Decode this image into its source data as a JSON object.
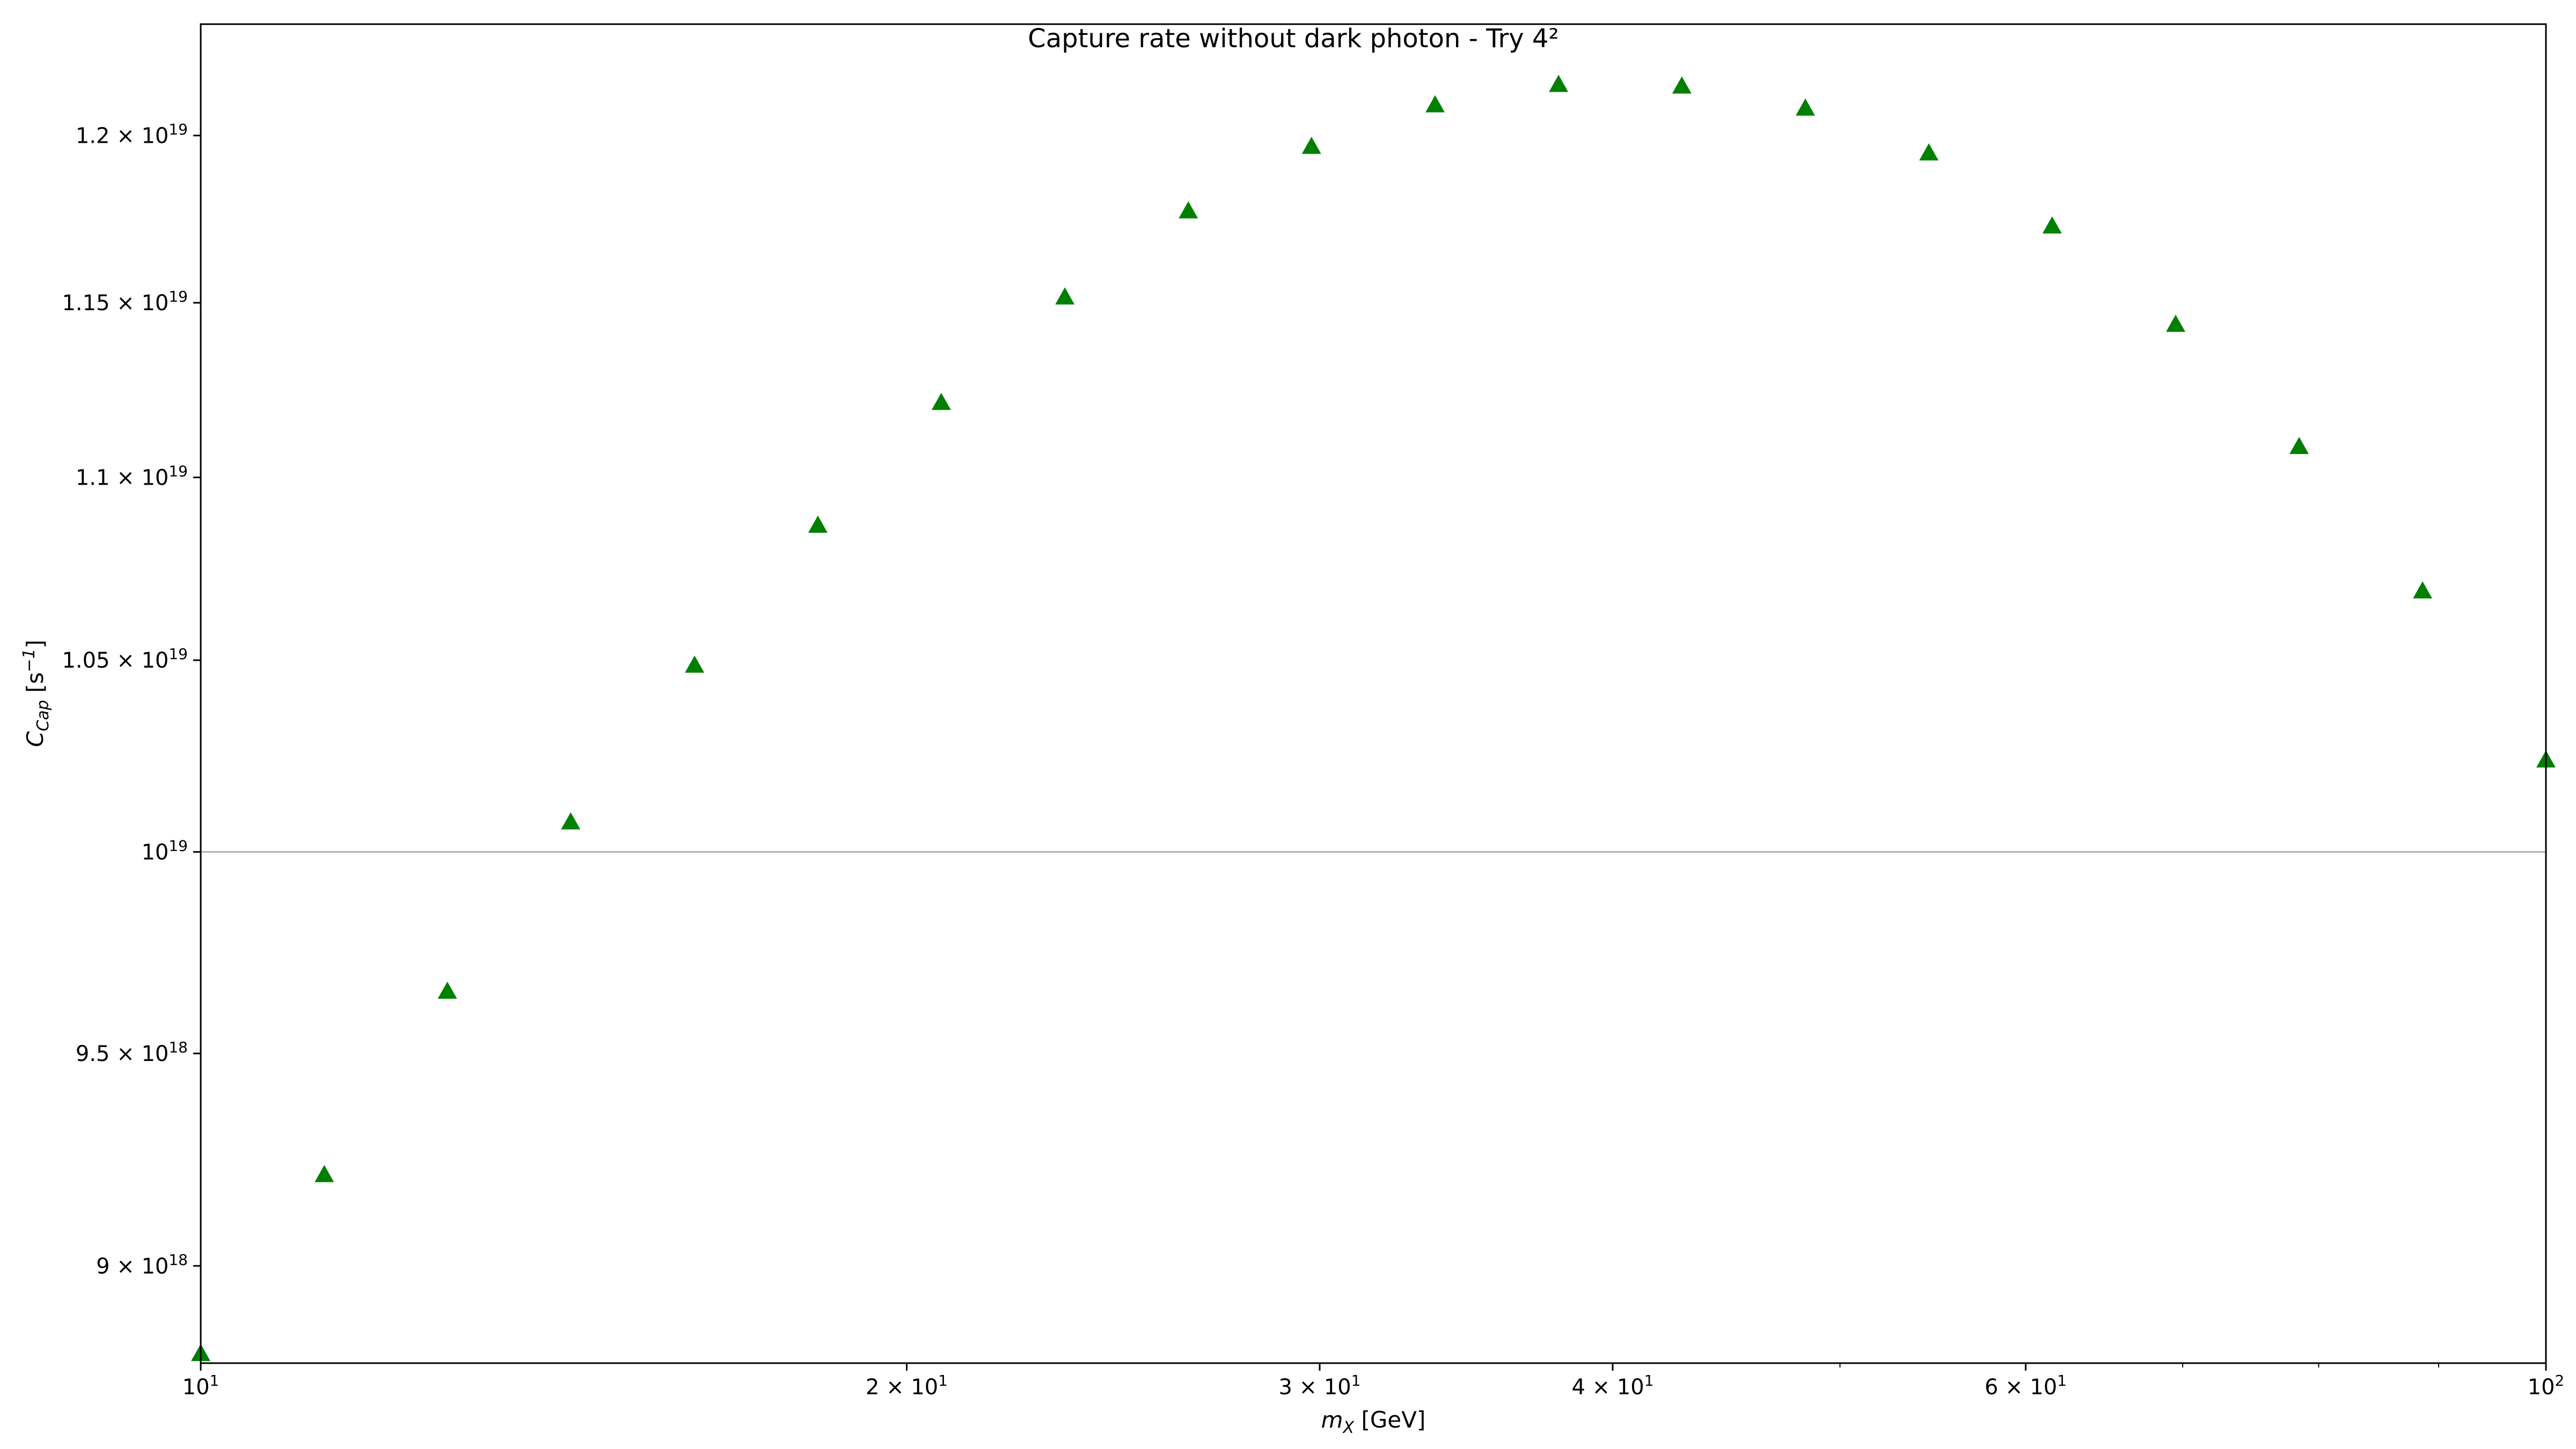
{
  "chart_data": {
    "type": "scatter",
    "title": "Capture rate without dark photon - Try 4²",
    "xlabel": {
      "base": "m",
      "sub": "X",
      "rest": " [GeV]"
    },
    "ylabel": {
      "base": "C",
      "sub": "Cap",
      "rest": " [s",
      "sup": "−1",
      "close": "]"
    },
    "xscale": "log",
    "yscale": "log",
    "xlim": [
      10,
      100
    ],
    "ylim": [
      8.78e+18,
      1.2345e+19
    ],
    "marker": "triangle",
    "marker_color": "#008000",
    "reference_line": {
      "y": 1e+19,
      "color": "#b0b0b0"
    },
    "x_ticks": [
      {
        "value": 10,
        "mant": "10",
        "exp": "1"
      },
      {
        "value": 20,
        "mant": "2 × 10",
        "exp": "1"
      },
      {
        "value": 30,
        "mant": "3 × 10",
        "exp": "1"
      },
      {
        "value": 40,
        "mant": "4 × 10",
        "exp": "1"
      },
      {
        "value": 60,
        "mant": "6 × 10",
        "exp": "1"
      },
      {
        "value": 100,
        "mant": "10",
        "exp": "2"
      }
    ],
    "x_minor_ticks": [
      50,
      70,
      80,
      90
    ],
    "y_ticks": [
      {
        "value": 9e+18,
        "mant": "9 × 10",
        "exp": "18"
      },
      {
        "value": 9.5e+18,
        "mant": "9.5 × 10",
        "exp": "18"
      },
      {
        "value": 1e+19,
        "mant": "10",
        "exp": "19"
      },
      {
        "value": 1.05e+19,
        "mant": "1.05 × 10",
        "exp": "19"
      },
      {
        "value": 1.1e+19,
        "mant": "1.1 × 10",
        "exp": "19"
      },
      {
        "value": 1.15e+19,
        "mant": "1.15 × 10",
        "exp": "19"
      },
      {
        "value": 1.2e+19,
        "mant": "1.2 × 10",
        "exp": "19"
      }
    ],
    "series": [
      {
        "x": [
          10.0,
          11.29,
          12.74,
          14.38,
          16.24,
          18.33,
          20.69,
          23.36,
          26.37,
          29.76,
          33.6,
          37.93,
          42.81,
          48.33,
          54.56,
          61.58,
          69.52,
          78.48,
          88.59,
          100.0
        ],
        "y": [
          8.8e+18,
          9.21e+18,
          9.65e+18,
          1.0075e+19,
          1.0485e+19,
          1.0865e+19,
          1.121e+19,
          1.1515e+19,
          1.177e+19,
          1.1965e+19,
          1.2092e+19,
          1.2155e+19,
          1.215e+19,
          1.2082e+19,
          1.1945e+19,
          1.1725e+19,
          1.1435e+19,
          1.1085e+19,
          1.0685e+19,
          1.0235e+19
        ]
      }
    ]
  }
}
